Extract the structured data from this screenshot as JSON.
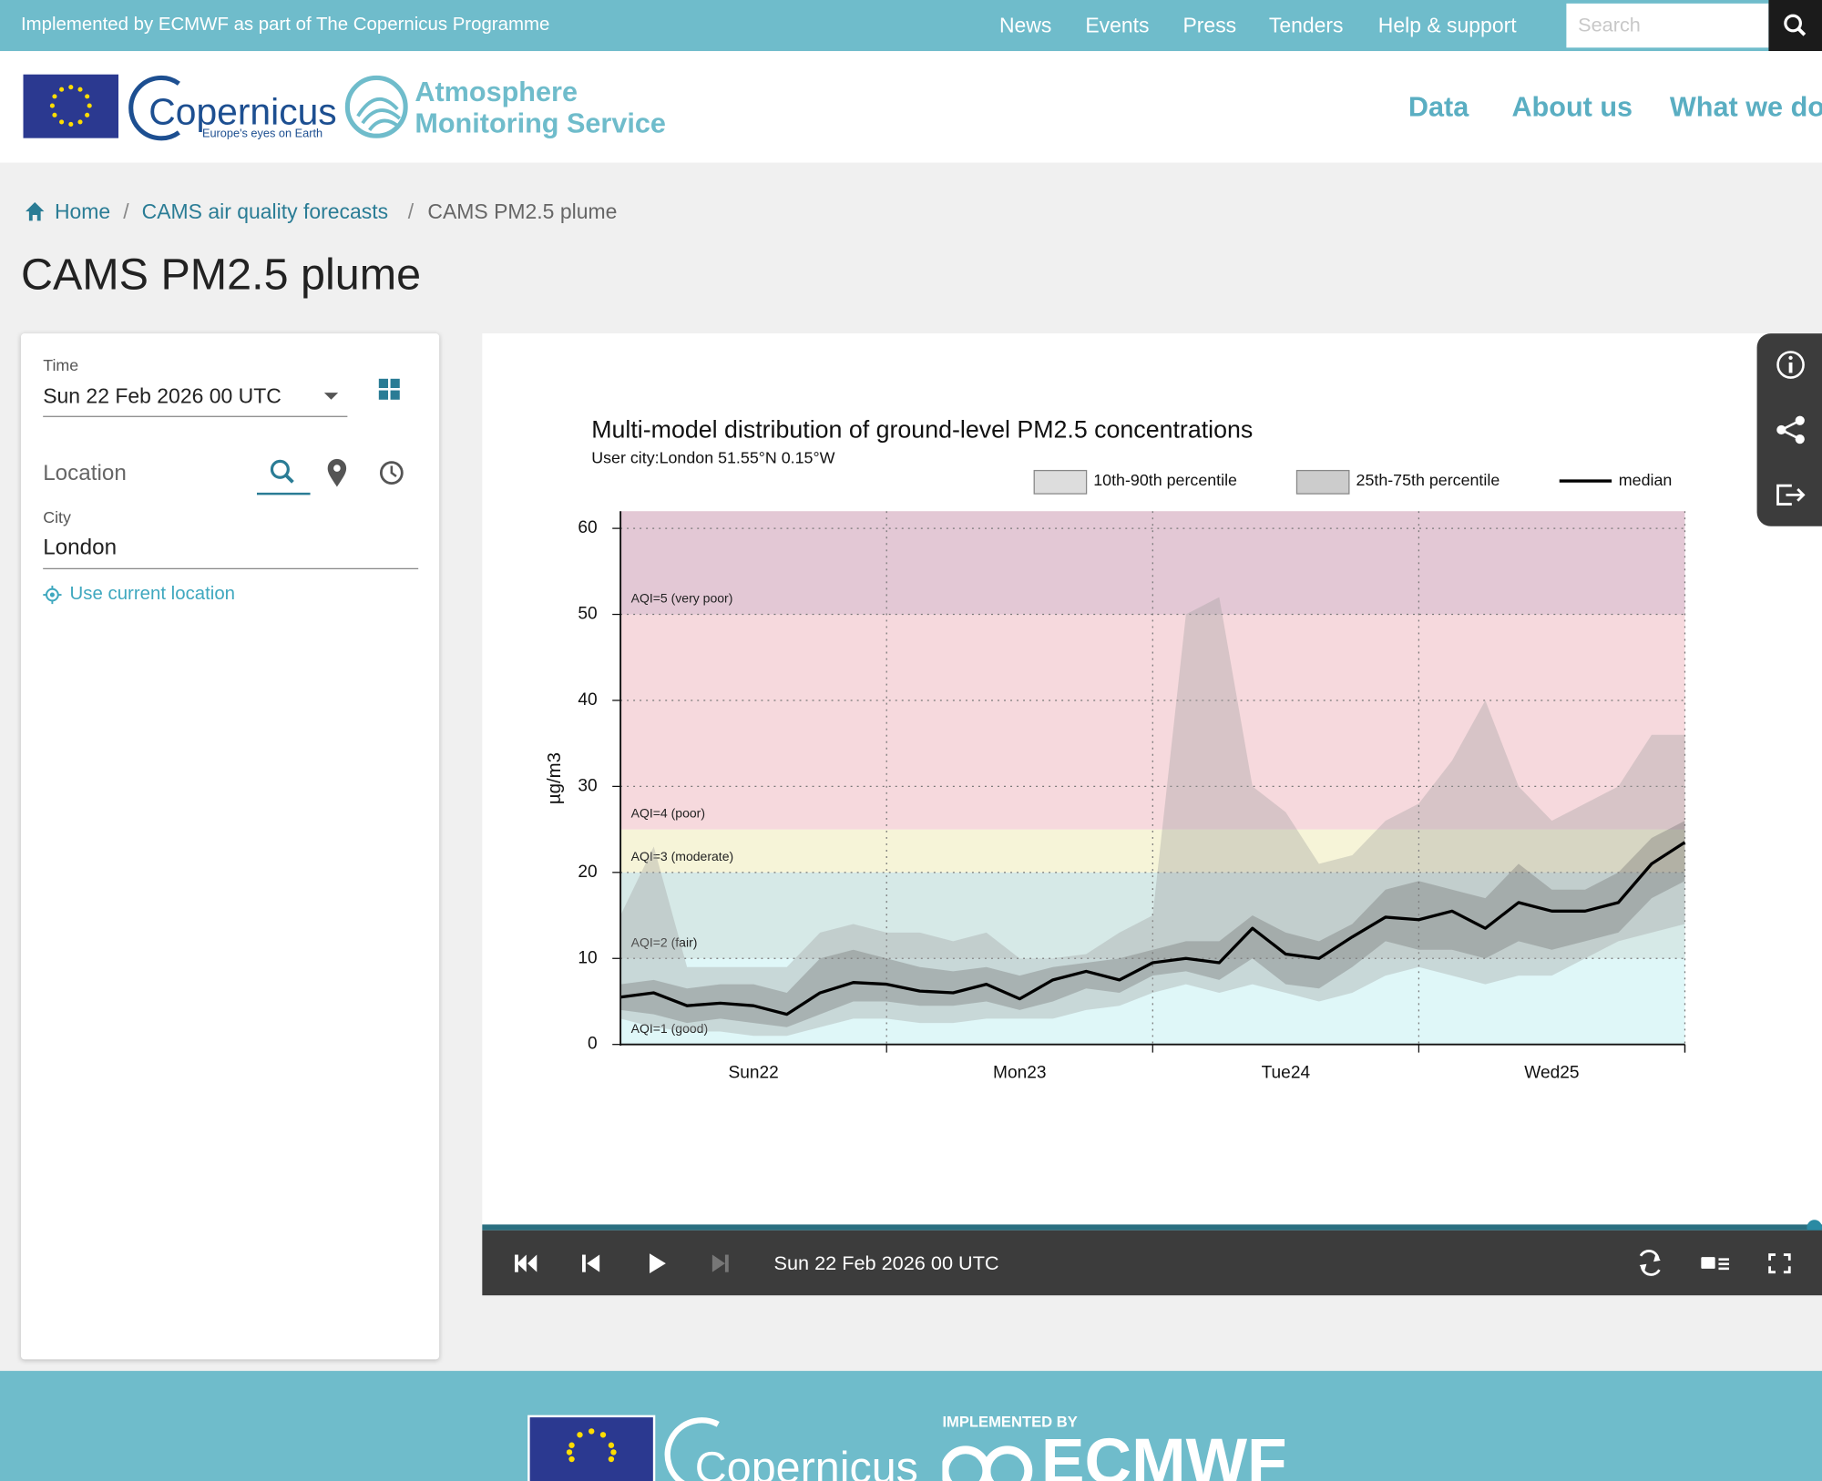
{
  "header": {
    "tagline": "Implemented by ECMWF as part of The Copernicus Programme",
    "links": [
      "News",
      "Events",
      "Press",
      "Tenders",
      "Help & support"
    ],
    "search_placeholder": "Search"
  },
  "brand": {
    "copernicus": "Copernicus",
    "copernicus_tagline": "Europe's eyes on Earth",
    "service": [
      "Atmosphere",
      "Monitoring Service"
    ]
  },
  "nav": [
    "Data",
    "About us",
    "What we do"
  ],
  "breadcrumb": [
    "Home",
    "CAMS air quality forecasts",
    "CAMS PM2.5 plume"
  ],
  "page_title": "CAMS PM2.5 plume",
  "sidebar": {
    "time_label": "Time",
    "time_value": "Sun 22 Feb 2026 00 UTC",
    "location_label": "Location",
    "city_label": "City",
    "city_value": "London",
    "use_location": "Use current location"
  },
  "player": {
    "time": "Sun 22 Feb 2026 00 UTC"
  },
  "footer": {
    "implemented_by": "IMPLEMENTED BY",
    "copernicus": "Copernicus",
    "ecmwf": "ECMWF"
  },
  "chart_data": {
    "type": "line",
    "title": "Multi-model distribution of ground-level PM2.5 concentrations",
    "subtitle": "User city:London 51.55°N 0.15°W",
    "ylabel": "µg/m3",
    "categories": [
      null,
      null,
      null,
      null,
      "Sun22",
      null,
      null,
      null,
      null,
      null,
      null,
      null,
      "Mon23",
      null,
      null,
      null,
      null,
      null,
      null,
      null,
      "Tue24",
      null,
      null,
      null,
      null,
      null,
      null,
      null,
      "Wed25",
      null,
      null,
      null,
      null
    ],
    "ylim": [
      0,
      62
    ],
    "yticks": [
      0,
      10,
      20,
      30,
      40,
      50,
      60
    ],
    "grid": true,
    "aqi_bands": [
      {
        "label": "AQI=1 (good)",
        "from": 0,
        "color": "#dff7f8"
      },
      {
        "label": "AQI=2 (fair)",
        "from": 10,
        "color": "#d6e9e7"
      },
      {
        "label": "AQI=3 (moderate)",
        "from": 20,
        "color": "#f6f4d8"
      },
      {
        "label": "AQI=4 (poor)",
        "from": 25,
        "color": "#f6d9dd"
      },
      {
        "label": "AQI=5 (very poor)",
        "from": 50,
        "color": "#e3c8d5"
      }
    ],
    "series": [
      {
        "name": "10th-90th percentile",
        "color": "#9e9e9e",
        "low": [
          3,
          2,
          1.5,
          1.5,
          1,
          1,
          2,
          3,
          3,
          2.5,
          2.5,
          3,
          3,
          3,
          4,
          4.5,
          6,
          7,
          6,
          7,
          6,
          5,
          6,
          8,
          9,
          8,
          7,
          8,
          8,
          10,
          12,
          13,
          14
        ],
        "high": [
          15,
          23,
          9,
          9,
          9,
          9,
          13,
          14,
          13,
          13,
          12,
          13,
          10,
          10,
          10.5,
          13,
          15,
          50,
          52,
          30,
          27,
          21,
          22,
          26,
          28,
          33,
          40,
          30,
          26,
          28,
          30,
          36,
          36
        ]
      },
      {
        "name": "25th-75th percentile",
        "color": "#6e6e6e",
        "low": [
          4,
          3.5,
          2.5,
          3,
          2.5,
          2,
          3.5,
          5,
          5,
          4.5,
          4.5,
          5,
          4,
          5,
          6.5,
          6,
          8,
          8.5,
          7.5,
          10,
          7,
          6.5,
          9,
          12,
          11,
          11,
          10,
          12,
          11,
          12,
          13,
          17,
          19
        ],
        "high": [
          7,
          7.5,
          6.5,
          7,
          7,
          6,
          10,
          11,
          10,
          9,
          8.5,
          9,
          8,
          9,
          9.5,
          10,
          11,
          12,
          12,
          15,
          13,
          12,
          14,
          18,
          19,
          18,
          17,
          21,
          18,
          18,
          20,
          24,
          26
        ]
      },
      {
        "name": "median",
        "color": "#000000",
        "values": [
          5.5,
          6,
          4.5,
          4.8,
          4.5,
          3.5,
          6,
          7.2,
          7,
          6.2,
          6,
          7,
          5.3,
          7.5,
          8.5,
          7.5,
          9.5,
          10,
          9.5,
          13.5,
          10.5,
          10,
          12.5,
          14.8,
          14.5,
          15.5,
          13.5,
          16.5,
          15.5,
          15.5,
          16.5,
          21,
          23.5
        ]
      }
    ]
  }
}
